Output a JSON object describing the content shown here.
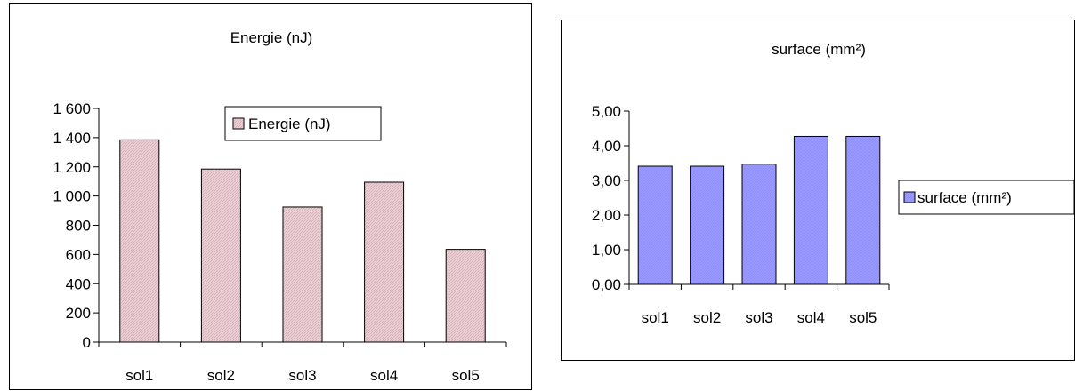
{
  "chart_data": [
    {
      "type": "bar",
      "title": "Energie (nJ)",
      "categories": [
        "sol1",
        "sol2",
        "sol3",
        "sol4",
        "sol5"
      ],
      "series": [
        {
          "name": "Energie (nJ)",
          "values": [
            1385,
            1185,
            925,
            1095,
            635
          ]
        }
      ],
      "ylim": [
        0,
        1600
      ],
      "yticks": [
        0,
        200,
        400,
        600,
        800,
        1000,
        1200,
        1400,
        1600
      ],
      "ytick_labels": [
        "0",
        "200",
        "400",
        "600",
        "800",
        "1 000",
        "1 200",
        "1 400",
        "1 600"
      ],
      "bar_color": "#e8c8d0",
      "legend_position": "top-right inside plot",
      "grid": false
    },
    {
      "type": "bar",
      "title": "surface (mm²)",
      "categories": [
        "sol1",
        "sol2",
        "sol3",
        "sol4",
        "sol5"
      ],
      "series": [
        {
          "name": "surface (mm²)",
          "values": [
            3.41,
            3.41,
            3.47,
            4.27,
            4.27
          ]
        }
      ],
      "ylim": [
        0,
        5
      ],
      "yticks": [
        0,
        1,
        2,
        3,
        4,
        5
      ],
      "ytick_labels": [
        "0,00",
        "1,00",
        "2,00",
        "3,00",
        "4,00",
        "5,00"
      ],
      "bar_color": "#9999ff",
      "legend_position": "right",
      "grid": false
    }
  ]
}
